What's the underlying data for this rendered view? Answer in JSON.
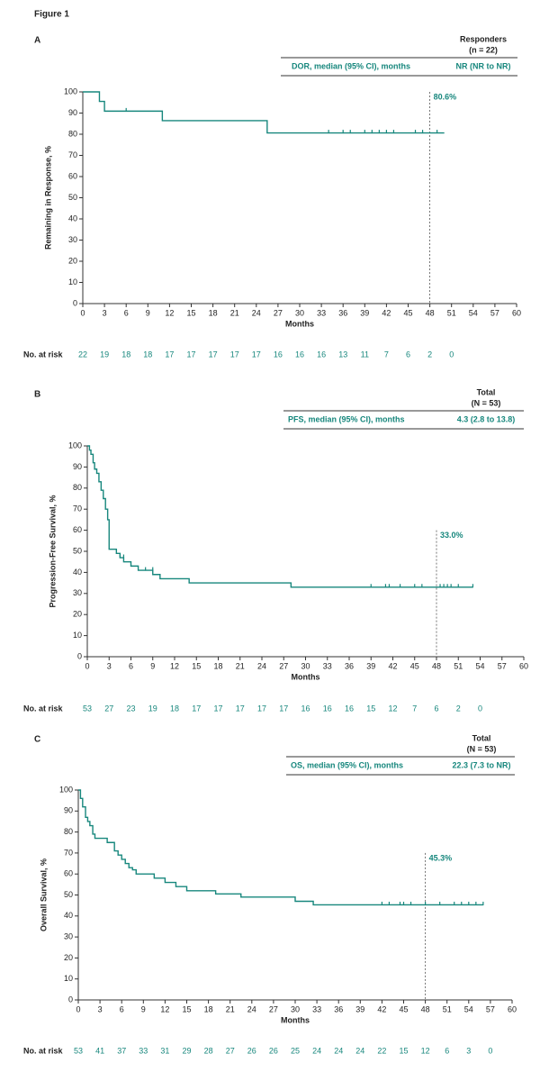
{
  "figure_title": "Figure 1",
  "chart_data": [
    {
      "type": "line",
      "panel": "A",
      "color": "#17877d",
      "header": {
        "col_title": "Responders",
        "col_subtitle": "(n = 22)",
        "row_label": "DOR, median (95% CI), months",
        "row_value": "NR (NR to NR)"
      },
      "ylabel": "Remaining in Response, %",
      "xlabel": "Months",
      "xlim": [
        0,
        60
      ],
      "xticks": [
        0,
        3,
        6,
        9,
        12,
        15,
        18,
        21,
        24,
        27,
        30,
        33,
        36,
        39,
        42,
        45,
        48,
        51,
        54,
        57,
        60
      ],
      "ylim": [
        0,
        100
      ],
      "yticks": [
        0,
        10,
        20,
        30,
        40,
        50,
        60,
        70,
        80,
        90,
        100
      ],
      "curve": {
        "x": [
          0,
          2.3,
          3,
          11,
          25.5,
          50
        ],
        "values": [
          100,
          95.5,
          90.9,
          86.4,
          80.6,
          80.6
        ]
      },
      "censored": {
        "x": [
          6,
          34,
          36,
          37,
          39,
          40,
          41,
          42,
          43,
          46,
          47,
          49
        ],
        "values": [
          90.9,
          80.6,
          80.6,
          80.6,
          80.6,
          80.6,
          80.6,
          80.6,
          80.6,
          80.6,
          80.6,
          80.6
        ]
      },
      "ref_line": {
        "x": 48,
        "top": 100,
        "label": "80.6%"
      },
      "at_risk_label": "No. at risk",
      "at_risk": [
        22,
        19,
        18,
        18,
        17,
        17,
        17,
        17,
        17,
        16,
        16,
        16,
        13,
        11,
        7,
        6,
        2,
        0
      ]
    },
    {
      "type": "line",
      "panel": "B",
      "color": "#17877d",
      "header": {
        "col_title": "Total",
        "col_subtitle": "(N = 53)",
        "row_label": "PFS, median (95% CI), months",
        "row_value": "4.3 (2.8 to 13.8)"
      },
      "ylabel": "Progression-Free Survival, %",
      "xlabel": "Months",
      "xlim": [
        0,
        60
      ],
      "xticks": [
        0,
        3,
        6,
        9,
        12,
        15,
        18,
        21,
        24,
        27,
        30,
        33,
        36,
        39,
        42,
        45,
        48,
        51,
        54,
        57,
        60
      ],
      "ylim": [
        0,
        100
      ],
      "yticks": [
        0,
        10,
        20,
        30,
        40,
        50,
        60,
        70,
        80,
        90,
        100
      ],
      "curve": {
        "x": [
          0,
          0.3,
          0.5,
          0.8,
          1,
          1.3,
          1.6,
          1.9,
          2.2,
          2.5,
          2.8,
          3,
          4,
          4.5,
          5,
          6,
          7,
          9,
          10,
          14,
          28,
          53
        ],
        "values": [
          100,
          98,
          96,
          92,
          89,
          87,
          83,
          79,
          75,
          70,
          65,
          51,
          49,
          47,
          45,
          43,
          41,
          39,
          37,
          35,
          33,
          33
        ]
      },
      "censored": {
        "x": [
          4.5,
          5,
          8,
          9,
          39,
          41,
          41.5,
          43,
          45,
          46,
          48.5,
          49,
          49.5,
          50,
          51,
          53
        ],
        "values": [
          47,
          47,
          41,
          41,
          33,
          33,
          33,
          33,
          33,
          33,
          33,
          33,
          33,
          33,
          33,
          33
        ]
      },
      "ref_line": {
        "x": 48,
        "top": 60,
        "label": "33.0%"
      },
      "at_risk_label": "No. at risk",
      "at_risk": [
        53,
        27,
        23,
        19,
        18,
        17,
        17,
        17,
        17,
        17,
        16,
        16,
        16,
        15,
        12,
        7,
        6,
        2,
        0
      ]
    },
    {
      "type": "line",
      "panel": "C",
      "color": "#17877d",
      "header": {
        "col_title": "Total",
        "col_subtitle": "(N = 53)",
        "row_label": "OS, median (95% CI), months",
        "row_value": "22.3 (7.3 to NR)"
      },
      "ylabel": "Overall Survival, %",
      "xlabel": "Months",
      "xlim": [
        0,
        60
      ],
      "xticks": [
        0,
        3,
        6,
        9,
        12,
        15,
        18,
        21,
        24,
        27,
        30,
        33,
        36,
        39,
        42,
        45,
        48,
        51,
        54,
        57,
        60
      ],
      "ylim": [
        0,
        100
      ],
      "yticks": [
        0,
        10,
        20,
        30,
        40,
        50,
        60,
        70,
        80,
        90,
        100
      ],
      "curve": {
        "x": [
          0,
          0.3,
          0.6,
          1,
          1.3,
          1.6,
          2,
          2.3,
          4,
          5,
          5.5,
          6,
          6.5,
          7,
          7.5,
          8,
          10.5,
          12,
          13.5,
          15,
          19,
          22.5,
          30,
          32.5,
          56
        ],
        "values": [
          100,
          96,
          92,
          87,
          85,
          83,
          79,
          77,
          75,
          71,
          69,
          67,
          65,
          63,
          62,
          60,
          58,
          56,
          54,
          52,
          50.5,
          49,
          47,
          45.3,
          45.3
        ]
      },
      "censored": {
        "x": [
          42,
          43,
          44.5,
          45,
          46,
          48,
          50,
          52,
          53,
          54,
          55,
          56
        ],
        "values": [
          45.3,
          45.3,
          45.3,
          45.3,
          45.3,
          45.3,
          45.3,
          45.3,
          45.3,
          45.3,
          45.3,
          45.3
        ]
      },
      "ref_line": {
        "x": 48,
        "top": 70,
        "label": "45.3%"
      },
      "at_risk_label": "No. at risk",
      "at_risk": [
        53,
        41,
        37,
        33,
        31,
        29,
        28,
        27,
        26,
        26,
        25,
        24,
        24,
        24,
        22,
        15,
        12,
        6,
        3,
        0
      ]
    }
  ]
}
